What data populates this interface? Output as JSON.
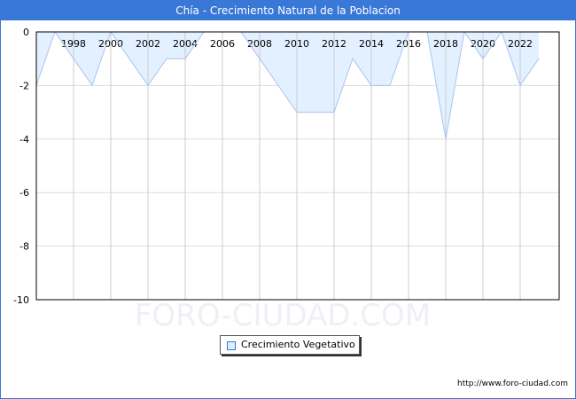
{
  "header": {
    "title": "Chía - Crecimiento Natural de la Poblacion"
  },
  "watermark": "FORO-CIUDAD.COM",
  "footer": {
    "url": "http://www.foro-ciudad.com"
  },
  "chart_data": {
    "type": "area",
    "title": "Chía - Crecimiento Natural de la Poblacion",
    "x": [
      1996,
      1997,
      1998,
      1999,
      2000,
      2001,
      2002,
      2003,
      2004,
      2005,
      2006,
      2007,
      2008,
      2009,
      2010,
      2011,
      2012,
      2013,
      2014,
      2015,
      2016,
      2017,
      2018,
      2019,
      2020,
      2021,
      2022,
      2023
    ],
    "series": [
      {
        "name": "Crecimiento Vegetativo",
        "values": [
          -2,
          0,
          -1,
          -2,
          0,
          -1,
          -2,
          -1,
          -1,
          0,
          0,
          0,
          -1,
          -2,
          -3,
          -3,
          -3,
          -1,
          -2,
          -2,
          0,
          0,
          -4,
          0,
          -1,
          0,
          -2,
          -1
        ]
      }
    ],
    "xticks": [
      "1998",
      "2000",
      "2002",
      "2004",
      "2006",
      "2008",
      "2010",
      "2012",
      "2014",
      "2016",
      "2018",
      "2020",
      "2022"
    ],
    "yticks": [
      "0",
      "-2",
      "-4",
      "-6",
      "-8",
      "-10"
    ],
    "ylim": [
      -10,
      0
    ],
    "grid": true,
    "legend": "bottom-center",
    "colors": {
      "line": "#a9c4f0",
      "fill": "#e2f0ff",
      "titlebar": "#3a78d8"
    }
  }
}
